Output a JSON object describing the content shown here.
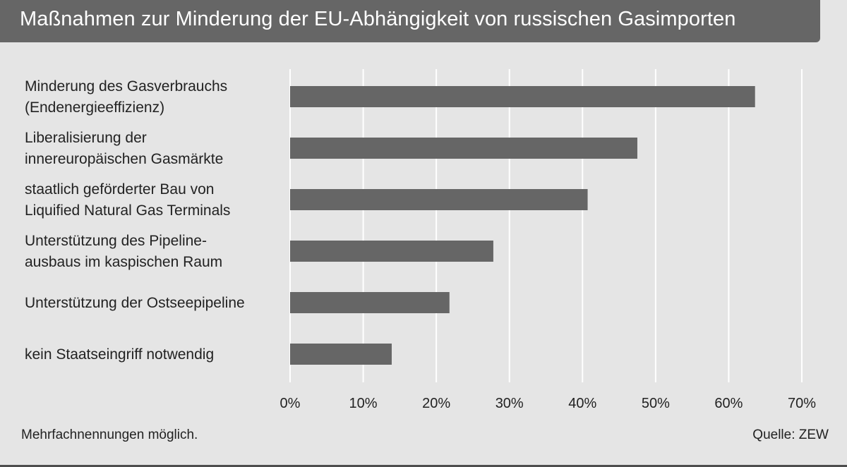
{
  "header": {
    "title": "Maßnahmen zur Minderung der EU-Abhängigkeit von russischen Gasimporten"
  },
  "footer": {
    "note": "Mehrfachnennungen möglich.",
    "source": "Quelle: ZEW"
  },
  "colors": {
    "bar": "#666666",
    "background": "#e5e5e5",
    "grid": "#ffffff",
    "title_bg": "#666666"
  },
  "chart_data": {
    "type": "bar",
    "orientation": "horizontal",
    "categories": [
      [
        "Minderung des Gasverbrauchs",
        "(Endenergieeffizienz)"
      ],
      [
        "Liberalisierung der",
        "innereuropäischen Gasmärkte"
      ],
      [
        "staatlich geförderter Bau von",
        "Liquified Natural Gas Terminals"
      ],
      [
        "Unterstützung des Pipeline-",
        "ausbaus im kaspischen Raum"
      ],
      [
        "Unterstützung der Ostseepipeline"
      ],
      [
        "kein Staatseingriff notwendig"
      ]
    ],
    "values": [
      63.6,
      47.5,
      40.7,
      27.8,
      21.8,
      13.9
    ],
    "xlim": [
      0,
      70
    ],
    "xticks": [
      0,
      10,
      20,
      30,
      40,
      50,
      60,
      70
    ],
    "xtick_labels": [
      "0%",
      "10%",
      "20%",
      "30%",
      "40%",
      "50%",
      "60%",
      "70%"
    ],
    "grid": "vertical"
  }
}
